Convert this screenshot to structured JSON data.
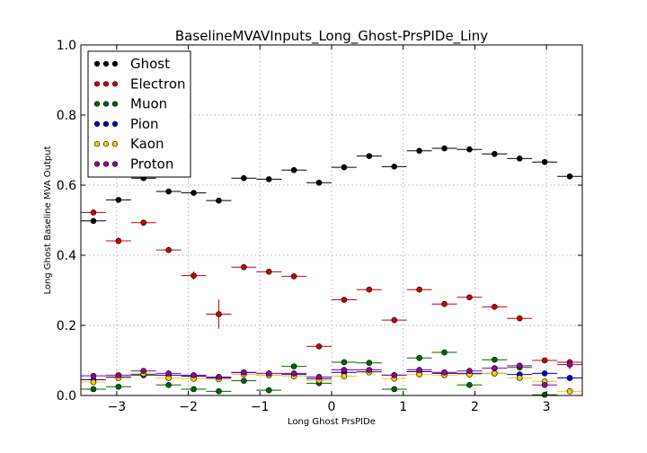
{
  "chart_data": {
    "type": "scatter",
    "title": "BaselineMVAVInputs_Long_Ghost-PrsPIDe_Liny",
    "xlabel": "Long Ghost PrsPIDe",
    "ylabel": "Long Ghost Baseline MVA Output",
    "xlim": [
      -3.5,
      3.5
    ],
    "ylim": [
      0.0,
      1.0
    ],
    "xticks": [
      -3,
      -2,
      -1,
      0,
      1,
      2,
      3
    ],
    "xtick_labels": [
      "−3",
      "−2",
      "−1",
      "0",
      "1",
      "2",
      "3"
    ],
    "yticks": [
      0.0,
      0.2,
      0.4,
      0.6,
      0.8,
      1.0
    ],
    "ytick_labels": [
      "0.0",
      "0.2",
      "0.4",
      "0.6",
      "0.8",
      "1.0"
    ],
    "grid": true,
    "legend_position": "top-left",
    "bin_half_width": 0.175,
    "x": [
      -3.325,
      -2.975,
      -2.625,
      -2.275,
      -1.925,
      -1.575,
      -1.225,
      -0.875,
      -0.525,
      -0.175,
      0.175,
      0.525,
      0.875,
      1.225,
      1.575,
      1.925,
      2.275,
      2.625,
      2.975,
      3.325
    ],
    "series": [
      {
        "name": "Ghost",
        "color": "#000000",
        "values": [
          0.498,
          0.558,
          0.62,
          0.582,
          0.578,
          0.556,
          0.62,
          0.617,
          0.643,
          0.607,
          0.651,
          0.683,
          0.653,
          0.698,
          0.705,
          0.702,
          0.689,
          0.676,
          0.666,
          0.625
        ],
        "errors": [
          0.004,
          0.004,
          0.003,
          0.003,
          0.003,
          0.004,
          0.003,
          0.003,
          0.003,
          0.003,
          0.003,
          0.003,
          0.003,
          0.002,
          0.002,
          0.002,
          0.003,
          0.003,
          0.003,
          0.003
        ]
      },
      {
        "name": "Electron",
        "color": "#cc0000",
        "values": [
          0.522,
          0.441,
          0.493,
          0.415,
          0.342,
          0.232,
          0.366,
          0.353,
          0.34,
          0.14,
          0.273,
          0.302,
          0.215,
          0.302,
          0.261,
          0.28,
          0.253,
          0.22,
          0.1,
          0.095
        ],
        "errors": [
          0.006,
          0.01,
          0.006,
          0.009,
          0.012,
          0.042,
          0.004,
          0.006,
          0.004,
          0.004,
          0.004,
          0.003,
          0.003,
          0.003,
          0.003,
          0.003,
          0.003,
          0.003,
          0.003,
          0.004
        ]
      },
      {
        "name": "Muon",
        "color": "#006600",
        "values": [
          0.018,
          0.025,
          0.058,
          0.03,
          0.018,
          0.012,
          0.042,
          0.015,
          0.083,
          0.035,
          0.095,
          0.093,
          0.018,
          0.107,
          0.123,
          0.03,
          0.102,
          0.08,
          0.002,
          0.05
        ],
        "errors": [
          0.003,
          0.003,
          0.005,
          0.003,
          0.003,
          0.003,
          0.004,
          0.003,
          0.005,
          0.003,
          0.004,
          0.004,
          0.003,
          0.004,
          0.006,
          0.003,
          0.008,
          0.005,
          0.003,
          0.003
        ]
      },
      {
        "name": "Pion",
        "color": "#0000cc",
        "values": [
          0.045,
          0.053,
          0.06,
          0.058,
          0.055,
          0.05,
          0.065,
          0.058,
          0.06,
          0.048,
          0.066,
          0.068,
          0.058,
          0.068,
          0.063,
          0.063,
          0.063,
          0.06,
          0.063,
          0.05
        ],
        "errors": [
          0.003,
          0.003,
          0.003,
          0.003,
          0.003,
          0.003,
          0.003,
          0.003,
          0.003,
          0.003,
          0.003,
          0.003,
          0.003,
          0.003,
          0.003,
          0.003,
          0.003,
          0.003,
          0.003,
          0.003
        ]
      },
      {
        "name": "Kaon",
        "color": "#ffcc00",
        "values": [
          0.038,
          0.05,
          0.062,
          0.05,
          0.048,
          0.046,
          0.06,
          0.058,
          0.055,
          0.043,
          0.055,
          0.066,
          0.048,
          0.06,
          0.058,
          0.06,
          0.063,
          0.05,
          0.04,
          0.012
        ],
        "errors": [
          0.003,
          0.003,
          0.003,
          0.003,
          0.003,
          0.003,
          0.003,
          0.003,
          0.003,
          0.003,
          0.003,
          0.003,
          0.003,
          0.003,
          0.003,
          0.003,
          0.003,
          0.003,
          0.003,
          0.003
        ]
      },
      {
        "name": "Proton",
        "color": "#990099",
        "values": [
          0.056,
          0.058,
          0.07,
          0.063,
          0.058,
          0.053,
          0.066,
          0.063,
          0.063,
          0.053,
          0.073,
          0.073,
          0.058,
          0.073,
          0.066,
          0.07,
          0.078,
          0.085,
          0.03,
          0.088
        ],
        "errors": [
          0.003,
          0.003,
          0.003,
          0.003,
          0.003,
          0.003,
          0.003,
          0.003,
          0.003,
          0.003,
          0.003,
          0.003,
          0.003,
          0.003,
          0.003,
          0.003,
          0.004,
          0.004,
          0.004,
          0.014
        ]
      }
    ]
  }
}
